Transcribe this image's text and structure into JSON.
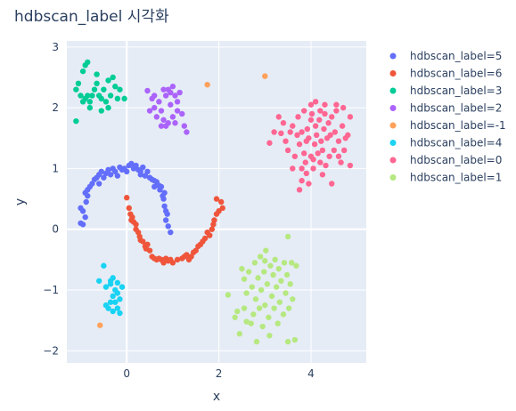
{
  "chart_data": {
    "type": "scatter",
    "title": "hdbscan_label 시각화",
    "xlabel": "x",
    "ylabel": "y",
    "xlim": [
      -1.3,
      5.2
    ],
    "ylim": [
      -2.2,
      3.1
    ],
    "xticks": [
      0,
      2,
      4
    ],
    "yticks": [
      -2,
      -1,
      0,
      1,
      2,
      3
    ],
    "grid": true,
    "legend_position": "right",
    "colors": {
      "plot_bg": "#e5ecf6",
      "grid": "#ffffff",
      "text": "#2a3f5f"
    },
    "series": [
      {
        "name": "hdbscan_label=5",
        "color": "#636efa",
        "points": [
          [
            -1.0,
            0.1
          ],
          [
            -0.95,
            0.08
          ],
          [
            -0.9,
            0.2
          ],
          [
            -1.0,
            0.35
          ],
          [
            -0.95,
            0.3
          ],
          [
            -0.88,
            0.45
          ],
          [
            -0.85,
            0.55
          ],
          [
            -0.9,
            0.6
          ],
          [
            -0.8,
            0.7
          ],
          [
            -0.75,
            0.75
          ],
          [
            -0.7,
            0.82
          ],
          [
            -0.85,
            0.65
          ],
          [
            -0.65,
            0.85
          ],
          [
            -0.6,
            0.9
          ],
          [
            -0.55,
            0.95
          ],
          [
            -0.5,
            0.85
          ],
          [
            -0.45,
            0.92
          ],
          [
            -0.4,
            0.98
          ],
          [
            -0.35,
            0.9
          ],
          [
            -0.3,
            1.0
          ],
          [
            -0.25,
            0.95
          ],
          [
            -0.2,
            0.88
          ],
          [
            -0.15,
            1.02
          ],
          [
            -0.1,
            0.98
          ],
          [
            -0.05,
            1.0
          ],
          [
            0.0,
            0.95
          ],
          [
            0.05,
            1.05
          ],
          [
            0.1,
            1.08
          ],
          [
            0.15,
            1.0
          ],
          [
            0.2,
            1.05
          ],
          [
            0.25,
            0.98
          ],
          [
            0.3,
            0.95
          ],
          [
            0.35,
            1.02
          ],
          [
            0.4,
            0.88
          ],
          [
            0.45,
            0.95
          ],
          [
            0.5,
            0.85
          ],
          [
            0.55,
            0.82
          ],
          [
            0.6,
            0.8
          ],
          [
            0.65,
            0.78
          ],
          [
            0.7,
            0.72
          ],
          [
            0.72,
            0.65
          ],
          [
            0.75,
            0.7
          ],
          [
            0.78,
            0.55
          ],
          [
            0.8,
            0.5
          ],
          [
            0.82,
            0.38
          ],
          [
            0.85,
            0.3
          ],
          [
            0.88,
            0.25
          ],
          [
            0.85,
            0.15
          ],
          [
            0.9,
            0.05
          ],
          [
            0.95,
            -0.05
          ],
          [
            -0.6,
            0.75
          ],
          [
            0.3,
            0.9
          ],
          [
            0.6,
            0.7
          ],
          [
            0.82,
            0.6
          ]
        ]
      },
      {
        "name": "hdbscan_label=6",
        "color": "#ef553b",
        "points": [
          [
            0.0,
            0.52
          ],
          [
            0.05,
            0.35
          ],
          [
            0.08,
            0.25
          ],
          [
            0.1,
            0.15
          ],
          [
            0.15,
            0.12
          ],
          [
            0.2,
            0.08
          ],
          [
            0.2,
            0.0
          ],
          [
            0.25,
            -0.05
          ],
          [
            0.28,
            -0.12
          ],
          [
            0.3,
            -0.18
          ],
          [
            0.35,
            -0.2
          ],
          [
            0.4,
            -0.28
          ],
          [
            0.45,
            -0.25
          ],
          [
            0.5,
            -0.35
          ],
          [
            0.55,
            -0.45
          ],
          [
            0.6,
            -0.48
          ],
          [
            0.65,
            -0.5
          ],
          [
            0.7,
            -0.48
          ],
          [
            0.75,
            -0.5
          ],
          [
            0.8,
            -0.55
          ],
          [
            0.85,
            -0.48
          ],
          [
            0.9,
            -0.52
          ],
          [
            1.0,
            -0.55
          ],
          [
            1.1,
            -0.5
          ],
          [
            1.2,
            -0.48
          ],
          [
            1.3,
            -0.42
          ],
          [
            1.35,
            -0.5
          ],
          [
            1.4,
            -0.45
          ],
          [
            1.5,
            -0.35
          ],
          [
            1.55,
            -0.28
          ],
          [
            1.6,
            -0.25
          ],
          [
            1.65,
            -0.2
          ],
          [
            1.7,
            -0.15
          ],
          [
            1.8,
            -0.1
          ],
          [
            1.85,
            0.0
          ],
          [
            1.88,
            0.08
          ],
          [
            1.9,
            0.15
          ],
          [
            1.95,
            0.25
          ],
          [
            2.0,
            0.3
          ],
          [
            2.05,
            0.45
          ],
          [
            1.95,
            0.5
          ],
          [
            1.75,
            -0.05
          ],
          [
            1.45,
            -0.38
          ],
          [
            1.25,
            -0.45
          ],
          [
            0.95,
            -0.5
          ],
          [
            0.12,
            0.2
          ],
          [
            0.42,
            -0.32
          ],
          [
            2.08,
            0.35
          ]
        ]
      },
      {
        "name": "hdbscan_label=3",
        "color": "#00cc96",
        "points": [
          [
            -0.9,
            2.7
          ],
          [
            -0.95,
            2.6
          ],
          [
            -1.05,
            2.4
          ],
          [
            -1.1,
            2.3
          ],
          [
            -1.0,
            2.2
          ],
          [
            -0.95,
            2.1
          ],
          [
            -0.9,
            2.15
          ],
          [
            -0.85,
            2.2
          ],
          [
            -0.8,
            2.1
          ],
          [
            -0.75,
            2.2
          ],
          [
            -0.7,
            2.3
          ],
          [
            -0.65,
            2.4
          ],
          [
            -0.6,
            2.2
          ],
          [
            -0.55,
            2.15
          ],
          [
            -0.5,
            2.3
          ],
          [
            -0.45,
            2.1
          ],
          [
            -0.4,
            2.0
          ],
          [
            -0.35,
            2.2
          ],
          [
            -0.3,
            2.5
          ],
          [
            -0.25,
            2.35
          ],
          [
            -0.2,
            2.15
          ],
          [
            -0.15,
            2.3
          ],
          [
            -1.1,
            1.78
          ],
          [
            -0.8,
            2.0
          ],
          [
            -0.65,
            2.55
          ],
          [
            -0.55,
            1.95
          ],
          [
            -0.05,
            2.15
          ],
          [
            -0.85,
            2.75
          ],
          [
            -0.4,
            2.45
          ]
        ]
      },
      {
        "name": "hdbscan_label=2",
        "color": "#ab63fa",
        "points": [
          [
            0.45,
            2.28
          ],
          [
            0.55,
            2.15
          ],
          [
            0.6,
            2.0
          ],
          [
            0.5,
            1.95
          ],
          [
            0.65,
            1.85
          ],
          [
            0.7,
            2.1
          ],
          [
            0.75,
            1.95
          ],
          [
            0.8,
            1.8
          ],
          [
            0.85,
            1.7
          ],
          [
            0.9,
            1.75
          ],
          [
            0.85,
            2.2
          ],
          [
            0.9,
            2.3
          ],
          [
            0.95,
            2.25
          ],
          [
            1.0,
            2.35
          ],
          [
            1.05,
            2.2
          ],
          [
            1.1,
            2.1
          ],
          [
            1.15,
            2.25
          ],
          [
            1.0,
            1.85
          ],
          [
            1.1,
            1.95
          ],
          [
            1.2,
            1.9
          ],
          [
            1.25,
            1.7
          ],
          [
            1.3,
            1.6
          ],
          [
            0.95,
            2.05
          ],
          [
            0.6,
            2.2
          ],
          [
            0.8,
            2.3
          ],
          [
            1.05,
            1.75
          ],
          [
            0.75,
            1.7
          ]
        ]
      },
      {
        "name": "hdbscan_label=-1",
        "color": "#ffa15a",
        "points": [
          [
            1.75,
            2.38
          ],
          [
            3.0,
            2.52
          ],
          [
            -0.58,
            -1.58
          ]
        ]
      },
      {
        "name": "hdbscan_label=4",
        "color": "#19d3f3",
        "points": [
          [
            -0.5,
            -0.6
          ],
          [
            -0.6,
            -0.85
          ],
          [
            -0.45,
            -0.95
          ],
          [
            -0.35,
            -0.85
          ],
          [
            -0.3,
            -0.8
          ],
          [
            -0.2,
            -0.88
          ],
          [
            -0.25,
            -1.0
          ],
          [
            -0.3,
            -1.1
          ],
          [
            -0.35,
            -1.2
          ],
          [
            -0.4,
            -1.3
          ],
          [
            -0.45,
            -1.25
          ],
          [
            -0.3,
            -1.35
          ],
          [
            -0.2,
            -1.3
          ],
          [
            -0.15,
            -1.38
          ],
          [
            -0.25,
            -1.2
          ],
          [
            -0.15,
            -1.15
          ],
          [
            -0.1,
            -0.95
          ],
          [
            -0.35,
            -0.9
          ],
          [
            -0.2,
            -1.05
          ]
        ]
      },
      {
        "name": "hdbscan_label=0",
        "color": "#ff6692",
        "points": [
          [
            3.1,
            1.42
          ],
          [
            3.2,
            1.6
          ],
          [
            3.3,
            1.85
          ],
          [
            3.4,
            1.75
          ],
          [
            3.45,
            1.45
          ],
          [
            3.5,
            1.3
          ],
          [
            3.55,
            1.6
          ],
          [
            3.6,
            1.7
          ],
          [
            3.65,
            1.2
          ],
          [
            3.7,
            1.55
          ],
          [
            3.72,
            1.85
          ],
          [
            3.75,
            1.4
          ],
          [
            3.8,
            1.6
          ],
          [
            3.8,
            1.0
          ],
          [
            3.85,
            1.25
          ],
          [
            3.88,
            1.1
          ],
          [
            3.9,
            1.45
          ],
          [
            3.92,
            1.65
          ],
          [
            3.95,
            1.5
          ],
          [
            4.0,
            1.2
          ],
          [
            4.0,
            1.8
          ],
          [
            4.02,
            1.9
          ],
          [
            4.05,
            1.15
          ],
          [
            4.08,
            1.4
          ],
          [
            4.1,
            1.7
          ],
          [
            4.12,
            1.55
          ],
          [
            4.15,
            1.25
          ],
          [
            4.18,
            1.8
          ],
          [
            4.2,
            1.95
          ],
          [
            4.22,
            1.45
          ],
          [
            4.25,
            1.3
          ],
          [
            4.28,
            1.65
          ],
          [
            4.3,
            1.9
          ],
          [
            4.32,
            1.05
          ],
          [
            4.35,
            1.5
          ],
          [
            4.38,
            1.75
          ],
          [
            4.4,
            1.2
          ],
          [
            4.42,
            1.55
          ],
          [
            4.45,
            1.85
          ],
          [
            4.5,
            1.3
          ],
          [
            4.52,
            1.6
          ],
          [
            4.55,
            1.95
          ],
          [
            4.6,
            1.45
          ],
          [
            4.65,
            1.1
          ],
          [
            4.68,
            1.7
          ],
          [
            4.7,
            2.0
          ],
          [
            4.75,
            1.5
          ],
          [
            4.8,
            1.55
          ],
          [
            4.85,
            1.85
          ],
          [
            4.85,
            1.05
          ],
          [
            3.85,
            1.95
          ],
          [
            4.0,
            2.05
          ],
          [
            4.1,
            2.1
          ],
          [
            4.3,
            2.05
          ],
          [
            4.55,
            2.05
          ],
          [
            3.95,
            0.75
          ],
          [
            3.8,
            0.8
          ],
          [
            3.75,
            0.65
          ],
          [
            3.9,
            0.92
          ],
          [
            4.25,
            0.9
          ],
          [
            4.45,
            0.75
          ],
          [
            4.05,
            1.0
          ],
          [
            4.6,
            1.2
          ],
          [
            3.35,
            1.58
          ],
          [
            3.6,
            1.0
          ],
          [
            4.72,
            1.3
          ],
          [
            4.2,
            1.1
          ]
        ]
      },
      {
        "name": "hdbscan_label=1",
        "color": "#b6e880",
        "points": [
          [
            2.2,
            -1.08
          ],
          [
            2.35,
            -1.45
          ],
          [
            2.45,
            -1.72
          ],
          [
            2.5,
            -0.65
          ],
          [
            2.55,
            -0.82
          ],
          [
            2.55,
            -1.3
          ],
          [
            2.6,
            -1.05
          ],
          [
            2.65,
            -0.7
          ],
          [
            2.7,
            -1.55
          ],
          [
            2.72,
            -0.95
          ],
          [
            2.75,
            -1.4
          ],
          [
            2.78,
            -0.55
          ],
          [
            2.8,
            -1.15
          ],
          [
            2.82,
            -1.85
          ],
          [
            2.85,
            -0.8
          ],
          [
            2.88,
            -1.3
          ],
          [
            2.9,
            -0.45
          ],
          [
            2.92,
            -1.0
          ],
          [
            2.95,
            -1.6
          ],
          [
            2.98,
            -0.7
          ],
          [
            3.0,
            -1.25
          ],
          [
            3.02,
            -0.35
          ],
          [
            3.05,
            -0.9
          ],
          [
            3.08,
            -1.45
          ],
          [
            3.1,
            -1.75
          ],
          [
            3.12,
            -0.6
          ],
          [
            3.15,
            -1.1
          ],
          [
            3.18,
            -0.75
          ],
          [
            3.2,
            -1.3
          ],
          [
            3.22,
            -0.5
          ],
          [
            3.25,
            -0.95
          ],
          [
            3.28,
            -1.55
          ],
          [
            3.3,
            -0.65
          ],
          [
            3.32,
            -1.2
          ],
          [
            3.35,
            -0.85
          ],
          [
            3.4,
            -1.4
          ],
          [
            3.42,
            -0.55
          ],
          [
            3.45,
            -1.05
          ],
          [
            3.48,
            -0.75
          ],
          [
            3.5,
            -0.12
          ],
          [
            3.52,
            -1.3
          ],
          [
            3.55,
            -0.9
          ],
          [
            3.58,
            -0.55
          ],
          [
            3.6,
            -1.15
          ],
          [
            3.65,
            -1.82
          ],
          [
            3.68,
            -0.6
          ],
          [
            3.5,
            -1.85
          ],
          [
            2.4,
            -1.35
          ],
          [
            2.6,
            -1.52
          ],
          [
            3.0,
            -0.52
          ]
        ]
      }
    ]
  }
}
